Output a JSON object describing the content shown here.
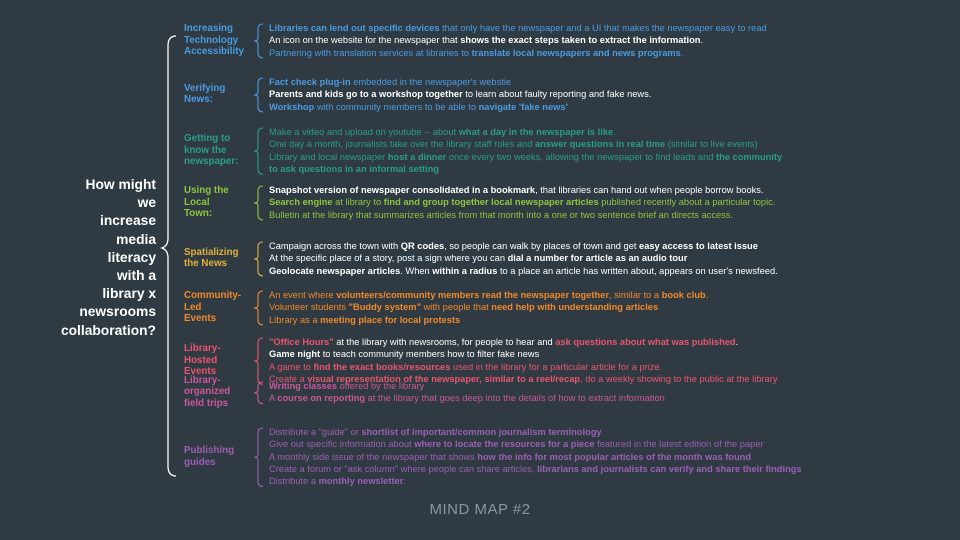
{
  "root": {
    "question": "How might\nwe\nincrease\nmedia\nliteracy\nwith a\nlibrary x\nnewsrooms\ncollaboration?"
  },
  "colors": {
    "background": "#2f3a42",
    "root_text": "#ffffff",
    "footer": "#8e959b"
  },
  "categories": [
    {
      "label": "Increasing\nTechnology\nAccessibility",
      "color": "#4a9be0",
      "top": 22,
      "lines": [
        {
          "color": "#4a9be0",
          "parts": [
            {
              "t": "Libraries can lend out specific devices",
              "b": true
            },
            {
              "t": " that only have the newspaper and a UI that makes the newspaper easy to read"
            }
          ]
        },
        {
          "color": "#ffffff",
          "parts": [
            {
              "t": "An icon on the website for the newspaper that "
            },
            {
              "t": "shows the exact steps taken to extract the information",
              "b": true
            },
            {
              "t": "."
            }
          ]
        },
        {
          "color": "#4a9be0",
          "parts": [
            {
              "t": "Partnering with translation services at libraries to "
            },
            {
              "t": "translate local newspapers and news programs",
              "b": true
            },
            {
              "t": "."
            }
          ]
        }
      ]
    },
    {
      "label": "Verifying\nNews:",
      "color": "#4a9be0",
      "top": 76,
      "lines": [
        {
          "color": "#4a9be0",
          "parts": [
            {
              "t": "Fact check plug-in",
              "b": true
            },
            {
              "t": " embedded in the newspaper's webstie"
            }
          ]
        },
        {
          "color": "#ffffff",
          "parts": [
            {
              "t": "Parents and kids go to a workshop together",
              "b": true
            },
            {
              "t": " to learn about faulty reporting and fake news."
            }
          ]
        },
        {
          "color": "#4a9be0",
          "parts": [
            {
              "t": "Workshop",
              "b": true
            },
            {
              "t": " with community members to be able to "
            },
            {
              "t": "navigate 'fake news'",
              "b": true
            }
          ]
        }
      ]
    },
    {
      "label": "Getting to\nknow the\nnewspaper:",
      "color": "#2a9d8a",
      "top": 126,
      "lines": [
        {
          "color": "#2a9d8a",
          "parts": [
            {
              "t": "Make a video and upload on youtube -- about "
            },
            {
              "t": "what a day in the newspaper is like",
              "b": true
            },
            {
              "t": "."
            }
          ]
        },
        {
          "color": "#2a9d8a",
          "parts": [
            {
              "t": "One day a month, journalists take over the library staff roles and "
            },
            {
              "t": "answer questions in real time",
              "b": true
            },
            {
              "t": " (similar to live events)"
            }
          ]
        },
        {
          "color": "#2a9d8a",
          "parts": [
            {
              "t": "Library and local newspaper "
            },
            {
              "t": "host a dinner",
              "b": true
            },
            {
              "t": " once every two weeks, allowing the newspaper to find leads and "
            },
            {
              "t": "the community",
              "b": true
            }
          ]
        },
        {
          "color": "#2a9d8a",
          "parts": [
            {
              "t": "to ask questions in an informal setting",
              "b": true
            }
          ]
        }
      ]
    },
    {
      "label": "Using the\nLocal\nTown:",
      "color": "#8dc63f",
      "top": 184,
      "lines": [
        {
          "color": "#ffffff",
          "parts": [
            {
              "t": "Snapshot version of newspaper consolidated in a bookmark",
              "b": true
            },
            {
              "t": ", that libraries can hand out when people borrow books."
            }
          ]
        },
        {
          "color": "#8dc63f",
          "parts": [
            {
              "t": "Search engine",
              "b": true
            },
            {
              "t": " at library to "
            },
            {
              "t": "find and group together local newspaper articles",
              "b": true
            },
            {
              "t": " published recently about a particular topic."
            }
          ]
        },
        {
          "color": "#8dc63f",
          "parts": [
            {
              "t": "Bulletin at the library that summarizes articles from that month into a one or two sentence brief an directs access."
            }
          ]
        }
      ]
    },
    {
      "label": "Spatializing\nthe News",
      "color": "#e2b13c",
      "top": 240,
      "lines": [
        {
          "color": "#ffffff",
          "parts": [
            {
              "t": "Campaign across the town with "
            },
            {
              "t": "QR codes",
              "b": true
            },
            {
              "t": ", so people can walk by places of town and get "
            },
            {
              "t": "easy access to latest issue",
              "b": true
            }
          ]
        },
        {
          "color": "#ffffff",
          "parts": [
            {
              "t": "At the specific place of a story, post a sign where you can "
            },
            {
              "t": "dial a number for article as an audio tour",
              "b": true
            }
          ]
        },
        {
          "color": "#ffffff",
          "parts": [
            {
              "t": "Geolocate newspaper articles",
              "b": true
            },
            {
              "t": ". When "
            },
            {
              "t": "within a radius",
              "b": true
            },
            {
              "t": " to a place an article has written about, appears on user's newsfeed."
            }
          ]
        }
      ]
    },
    {
      "label": "Community-\nLed\nEvents",
      "color": "#ef8a2c",
      "top": 289,
      "lines": [
        {
          "color": "#ef8a2c",
          "parts": [
            {
              "t": "An event where "
            },
            {
              "t": "volunteers/community members read the newspaper together",
              "b": true
            },
            {
              "t": ", similar to  a "
            },
            {
              "t": "book club",
              "b": true
            },
            {
              "t": "."
            }
          ]
        },
        {
          "color": "#ef8a2c",
          "parts": [
            {
              "t": "Volunteer students "
            },
            {
              "t": "\"Buddy system\"",
              "b": true
            },
            {
              "t": " with people that "
            },
            {
              "t": "need help with understanding articles",
              "b": true
            }
          ]
        },
        {
          "color": "#ef8a2c",
          "parts": [
            {
              "t": "Library as a "
            },
            {
              "t": "meeting place for local protests",
              "b": true
            }
          ]
        }
      ]
    },
    {
      "label": "Library-\nHosted\nEvents",
      "color": "#e8566e",
      "top": 336,
      "lines": [
        {
          "color": "#ffffff",
          "parts": [
            {
              "t": "\"Office Hours\"",
              "b": true,
              "c": "#e8566e"
            },
            {
              "t": " at the library with newsrooms, for people to hear and "
            },
            {
              "t": "ask questions about what was published",
              "b": true,
              "c": "#e8566e"
            },
            {
              "t": "."
            }
          ]
        },
        {
          "color": "#ffffff",
          "parts": [
            {
              "t": "Game night",
              "b": true
            },
            {
              "t": " to teach community members how to filter fake news"
            }
          ]
        },
        {
          "color": "#e8566e",
          "parts": [
            {
              "t": "A game to "
            },
            {
              "t": "find the exact books/resources",
              "b": true
            },
            {
              "t": " used in the library for a particular article for a prize."
            }
          ]
        },
        {
          "color": "#e8566e",
          "parts": [
            {
              "t": "Create a "
            },
            {
              "t": "visual representation of the newspaper, similar to a reel/recap",
              "b": true
            },
            {
              "t": ", do a weekly showing to the public at the library"
            }
          ]
        }
      ]
    },
    {
      "label": "Library-\norganized\nfield trips",
      "color": "#c9589c",
      "top": 380,
      "lines": [
        {
          "color": "#c9589c",
          "parts": [
            {
              "t": "Writing classes",
              "b": true
            },
            {
              "t": " offered by the library"
            }
          ]
        },
        {
          "color": "#c9589c",
          "parts": [
            {
              "t": "A "
            },
            {
              "t": "course on reporting",
              "b": true
            },
            {
              "t": " at the library that goes deep into the details of how to extract information"
            }
          ]
        }
      ]
    },
    {
      "label": "Publishing\nguides",
      "color": "#9c5fb5",
      "top": 426,
      "lines": [
        {
          "color": "#9c5fb5",
          "parts": [
            {
              "t": "Distribute a \"guide\" or "
            },
            {
              "t": "shortlist of important/common journalism terminology",
              "b": true
            }
          ]
        },
        {
          "color": "#9c5fb5",
          "parts": [
            {
              "t": "Give out specific information about "
            },
            {
              "t": "where to locate the resources for a piece",
              "b": true
            },
            {
              "t": " featured in the latest edition of the paper"
            }
          ]
        },
        {
          "color": "#9c5fb5",
          "parts": [
            {
              "t": "A monthly side issue of the newspaper that shows "
            },
            {
              "t": "how the info for most popular articles of the month was found",
              "b": true
            }
          ]
        },
        {
          "color": "#9c5fb5",
          "parts": [
            {
              "t": "Create a forum or \"ask column\" where people can share articles, "
            },
            {
              "t": "librarians and journalists can verify and share their findings",
              "b": true
            }
          ]
        },
        {
          "color": "#9c5fb5",
          "parts": [
            {
              "t": "Distribute a "
            },
            {
              "t": "monthly newsletter",
              "b": true
            },
            {
              "t": "."
            }
          ]
        }
      ]
    }
  ],
  "footer": {
    "title": "MIND MAP #2"
  }
}
